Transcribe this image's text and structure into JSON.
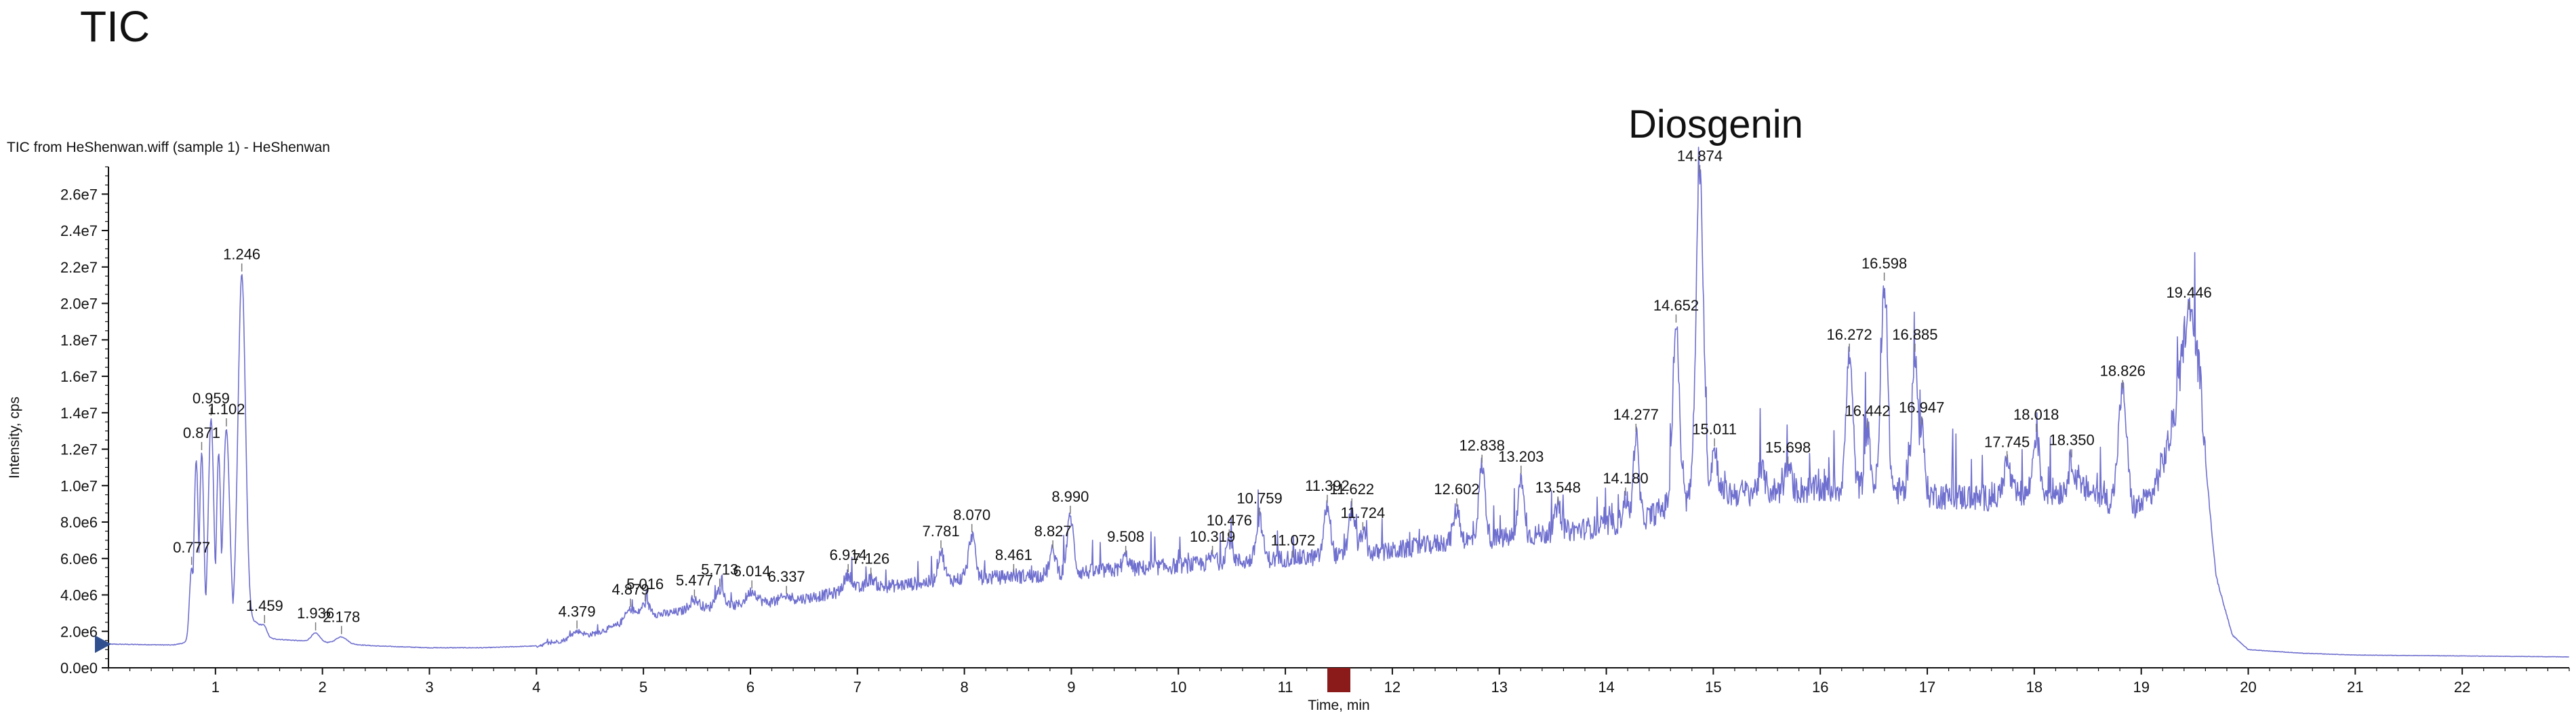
{
  "page": {
    "big_title": "TIC",
    "subtitle": "TIC from HeShenwan.wiff (sample 1) - HeShenwan",
    "annotation": "Diosgenin"
  },
  "colors": {
    "trace": "#6f6fcf",
    "axis": "#111111",
    "marker": "#8b1a1a",
    "arrow": "#2f4f8f"
  },
  "chart_data": {
    "type": "line",
    "title": "TIC from HeShenwan.wiff (sample 1) - HeShenwan",
    "xlabel": "Time, min",
    "ylabel": "Intensity, cps",
    "xlim": [
      0,
      23
    ],
    "ylim": [
      0,
      27500000
    ],
    "x_ticks": [
      1,
      2,
      3,
      4,
      5,
      6,
      7,
      8,
      9,
      10,
      11,
      12,
      13,
      14,
      15,
      16,
      17,
      18,
      19,
      20,
      21,
      22
    ],
    "x_tick_labels": [
      "1",
      "2",
      "3",
      "4",
      "5",
      "6",
      "7",
      "8",
      "9",
      "10",
      "11",
      "12",
      "13",
      "14",
      "15",
      "16",
      "17",
      "18",
      "19",
      "20",
      "21",
      "22"
    ],
    "y_ticks": [
      0,
      2000000,
      4000000,
      6000000,
      8000000,
      10000000,
      12000000,
      14000000,
      16000000,
      18000000,
      20000000,
      22000000,
      24000000,
      26000000
    ],
    "y_tick_labels": [
      "0.0e0",
      "2.0e6",
      "4.0e6",
      "6.0e6",
      "8.0e6",
      "1.0e7",
      "1.2e7",
      "1.4e7",
      "1.6e7",
      "1.8e7",
      "2.0e7",
      "2.2e7",
      "2.4e7",
      "2.6e7"
    ],
    "grid": false,
    "series": [
      {
        "values_note": "",
        "baseline": [
          [
            0.0,
            1300000
          ],
          [
            0.6,
            1250000
          ],
          [
            0.74,
            1400000
          ],
          [
            0.9,
            2000000
          ],
          [
            1.38,
            2500000
          ],
          [
            1.5,
            1600000
          ],
          [
            2.0,
            1400000
          ],
          [
            2.5,
            1200000
          ],
          [
            3.0,
            1100000
          ],
          [
            3.5,
            1100000
          ],
          [
            4.0,
            1200000
          ],
          [
            4.5,
            1800000
          ],
          [
            5.0,
            2800000
          ],
          [
            5.5,
            3200000
          ],
          [
            6.0,
            3500000
          ],
          [
            6.5,
            3800000
          ],
          [
            7.0,
            4300000
          ],
          [
            7.5,
            4600000
          ],
          [
            8.0,
            4900000
          ],
          [
            8.5,
            5000000
          ],
          [
            9.0,
            5200000
          ],
          [
            9.5,
            5400000
          ],
          [
            10.0,
            5600000
          ],
          [
            10.5,
            5800000
          ],
          [
            11.0,
            6000000
          ],
          [
            11.5,
            6100000
          ],
          [
            12.0,
            6400000
          ],
          [
            12.5,
            6900000
          ],
          [
            13.0,
            7100000
          ],
          [
            13.5,
            7400000
          ],
          [
            14.0,
            7800000
          ],
          [
            14.4,
            8300000
          ],
          [
            14.6,
            9000000
          ],
          [
            15.0,
            9500000
          ],
          [
            15.5,
            9700000
          ],
          [
            16.0,
            9800000
          ],
          [
            16.5,
            9900000
          ],
          [
            17.0,
            9500000
          ],
          [
            17.5,
            9300000
          ],
          [
            18.0,
            9600000
          ],
          [
            18.5,
            9800000
          ],
          [
            18.9,
            8500000
          ],
          [
            19.1,
            9500000
          ],
          [
            19.3,
            13000000
          ],
          [
            19.55,
            14000000
          ],
          [
            19.7,
            5000000
          ],
          [
            19.85,
            1800000
          ],
          [
            20.0,
            1000000
          ],
          [
            20.5,
            800000
          ],
          [
            21.0,
            700000
          ],
          [
            22.0,
            650000
          ],
          [
            23.0,
            600000
          ]
        ],
        "peaks": [
          [
            0.777,
            5500000,
            0.02
          ],
          [
            0.82,
            11400000,
            0.02
          ],
          [
            0.871,
            11800000,
            0.02
          ],
          [
            0.959,
            13700000,
            0.025
          ],
          [
            1.03,
            11800000,
            0.02
          ],
          [
            1.102,
            13100000,
            0.03
          ],
          [
            1.246,
            21600000,
            0.035
          ],
          [
            1.459,
            2300000,
            0.03
          ],
          [
            1.936,
            1900000,
            0.04
          ],
          [
            2.178,
            1700000,
            0.05
          ],
          [
            4.379,
            2000000,
            0.05
          ],
          [
            4.879,
            3200000,
            0.05
          ],
          [
            5.016,
            3500000,
            0.05
          ],
          [
            5.477,
            3700000,
            0.05
          ],
          [
            5.713,
            4300000,
            0.04
          ],
          [
            6.014,
            4200000,
            0.05
          ],
          [
            6.337,
            3900000,
            0.05
          ],
          [
            6.914,
            5100000,
            0.04
          ],
          [
            7.126,
            4900000,
            0.04
          ],
          [
            7.781,
            6400000,
            0.03
          ],
          [
            8.07,
            7300000,
            0.03
          ],
          [
            8.461,
            5100000,
            0.03
          ],
          [
            8.827,
            6400000,
            0.03
          ],
          [
            8.99,
            8300000,
            0.03
          ],
          [
            9.508,
            6100000,
            0.03
          ],
          [
            10.319,
            6100000,
            0.03
          ],
          [
            10.476,
            7000000,
            0.03
          ],
          [
            10.759,
            8200000,
            0.03
          ],
          [
            11.072,
            5900000,
            0.03
          ],
          [
            11.392,
            8900000,
            0.03
          ],
          [
            11.622,
            8700000,
            0.03
          ],
          [
            11.724,
            7400000,
            0.03
          ],
          [
            12.602,
            8700000,
            0.03
          ],
          [
            12.838,
            11100000,
            0.03
          ],
          [
            13.203,
            10500000,
            0.025
          ],
          [
            13.548,
            8800000,
            0.03
          ],
          [
            14.18,
            9300000,
            0.025
          ],
          [
            14.277,
            12800000,
            0.025
          ],
          [
            14.652,
            18800000,
            0.03
          ],
          [
            14.874,
            27000000,
            0.035
          ],
          [
            15.011,
            12000000,
            0.03
          ],
          [
            15.45,
            10800000,
            0.03
          ],
          [
            15.698,
            11000000,
            0.03
          ],
          [
            16.272,
            17200000,
            0.03
          ],
          [
            16.442,
            13000000,
            0.025
          ],
          [
            16.598,
            21100000,
            0.03
          ],
          [
            16.885,
            17200000,
            0.03
          ],
          [
            16.947,
            13200000,
            0.025
          ],
          [
            17.745,
            11300000,
            0.03
          ],
          [
            18.018,
            12800000,
            0.03
          ],
          [
            18.35,
            11400000,
            0.03
          ],
          [
            18.826,
            15200000,
            0.04
          ],
          [
            19.446,
            19500000,
            0.07
          ]
        ]
      }
    ],
    "peak_labels": [
      {
        "x": 0.777,
        "label": "0.777"
      },
      {
        "x": 0.871,
        "label": "0.871"
      },
      {
        "x": 0.959,
        "label": "0.959"
      },
      {
        "x": 1.102,
        "label": "1.102"
      },
      {
        "x": 1.246,
        "label": "1.246"
      },
      {
        "x": 1.459,
        "label": "1.459"
      },
      {
        "x": 1.936,
        "label": "1.936"
      },
      {
        "x": 2.178,
        "label": "2.178"
      },
      {
        "x": 4.379,
        "label": "4.379"
      },
      {
        "x": 4.879,
        "label": "4.879"
      },
      {
        "x": 5.016,
        "label": "5.016"
      },
      {
        "x": 5.477,
        "label": "5.477"
      },
      {
        "x": 5.713,
        "label": "5.713"
      },
      {
        "x": 6.014,
        "label": "6.014"
      },
      {
        "x": 6.337,
        "label": "6.337"
      },
      {
        "x": 6.914,
        "label": "6.914"
      },
      {
        "x": 7.126,
        "label": "7.126"
      },
      {
        "x": 7.781,
        "label": "7.781"
      },
      {
        "x": 8.07,
        "label": "8.070"
      },
      {
        "x": 8.461,
        "label": "8.461"
      },
      {
        "x": 8.827,
        "label": "8.827"
      },
      {
        "x": 8.99,
        "label": "8.990"
      },
      {
        "x": 9.508,
        "label": "9.508"
      },
      {
        "x": 10.319,
        "label": "10.319"
      },
      {
        "x": 10.476,
        "label": "10.476"
      },
      {
        "x": 10.759,
        "label": "10.759"
      },
      {
        "x": 11.072,
        "label": "11.072"
      },
      {
        "x": 11.392,
        "label": "11.392"
      },
      {
        "x": 11.622,
        "label": "11.622"
      },
      {
        "x": 11.724,
        "label": "11.724"
      },
      {
        "x": 12.602,
        "label": "12.602"
      },
      {
        "x": 12.838,
        "label": "12.838"
      },
      {
        "x": 13.203,
        "label": "13.203"
      },
      {
        "x": 13.548,
        "label": "13.548"
      },
      {
        "x": 14.18,
        "label": "14.180"
      },
      {
        "x": 14.277,
        "label": "14.277"
      },
      {
        "x": 14.652,
        "label": "14.652"
      },
      {
        "x": 14.874,
        "label": "14.874"
      },
      {
        "x": 15.011,
        "label": "15.011"
      },
      {
        "x": 15.698,
        "label": "15.698"
      },
      {
        "x": 16.272,
        "label": "16.272"
      },
      {
        "x": 16.442,
        "label": "16.442"
      },
      {
        "x": 16.598,
        "label": "16.598"
      },
      {
        "x": 16.885,
        "label": "16.885"
      },
      {
        "x": 16.947,
        "label": "16.947"
      },
      {
        "x": 17.745,
        "label": "17.745"
      },
      {
        "x": 18.018,
        "label": "18.018"
      },
      {
        "x": 18.35,
        "label": "18.350"
      },
      {
        "x": 18.826,
        "label": "18.826"
      },
      {
        "x": 19.446,
        "label": "19.446"
      }
    ],
    "time_marker_x": 11.5
  }
}
